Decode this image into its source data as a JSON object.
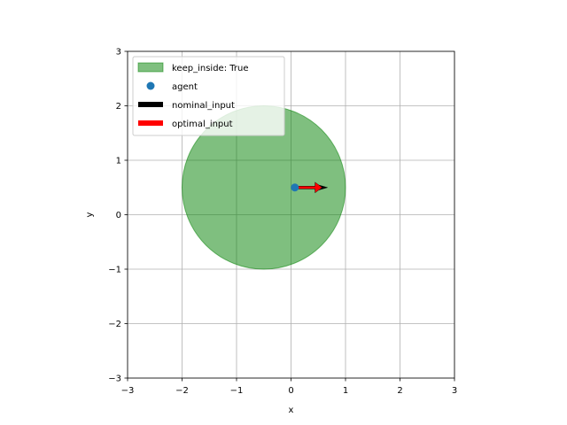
{
  "chart_data": {
    "type": "scatter",
    "xlabel": "x",
    "ylabel": "y",
    "xlim": [
      -3,
      3
    ],
    "ylim": [
      -3,
      3
    ],
    "x_ticks": [
      -3,
      -2,
      -1,
      0,
      1,
      2,
      3
    ],
    "y_ticks": [
      -3,
      -2,
      -1,
      0,
      1,
      2,
      3
    ],
    "x_tick_labels": [
      "−3",
      "−2",
      "−1",
      "0",
      "1",
      "2",
      "3"
    ],
    "y_tick_labels": [
      "−3",
      "−2",
      "−1",
      "0",
      "1",
      "2",
      "3"
    ],
    "grid": true,
    "legend_placement": "upper-left",
    "region": {
      "label": "keep_inside: True",
      "shape": "circle",
      "center": [
        -0.5,
        0.5
      ],
      "radius": 1.5,
      "color": "#008000",
      "alpha": 0.5
    },
    "agent": {
      "label": "agent",
      "x": 0.07,
      "y": 0.5,
      "color": "#1f77b4"
    },
    "nominal_input": {
      "label": "nominal_input",
      "from": [
        0.07,
        0.5
      ],
      "vector": [
        0.6,
        0.0
      ],
      "color": "#000000"
    },
    "optimal_input": {
      "label": "optimal_input",
      "from": [
        0.07,
        0.5
      ],
      "vector": [
        0.5,
        0.0
      ],
      "color": "#ff0000"
    }
  }
}
